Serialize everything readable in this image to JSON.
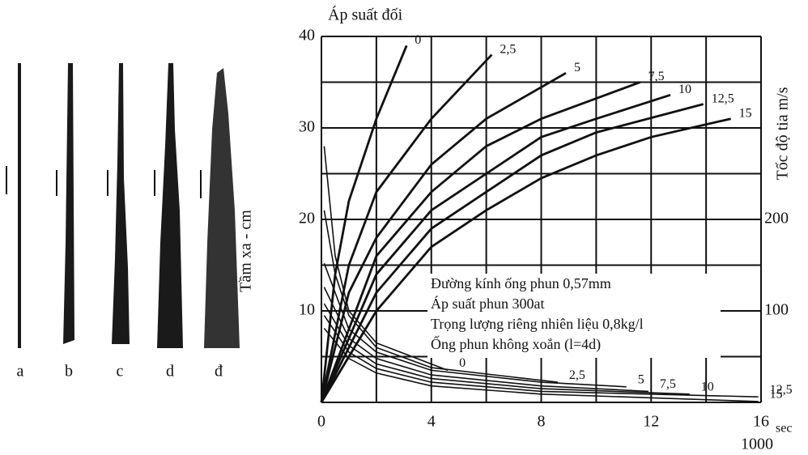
{
  "spray_images": {
    "labels": [
      "a",
      "b",
      "c",
      "d",
      "đ"
    ],
    "side_label": "Tầm xa - cm"
  },
  "chart_data": {
    "type": "line",
    "top_label": "Áp suất đối",
    "y2_label": "Tốc độ tia   m/s",
    "x_unit_top": "sec",
    "x_unit_bottom": "1000",
    "xlim": [
      0,
      16
    ],
    "xticks": [
      0,
      4,
      8,
      12,
      16
    ],
    "ylim": [
      0,
      40
    ],
    "yticks": [
      10,
      20,
      30,
      40
    ],
    "y2lim": [
      0,
      400
    ],
    "y2ticks": [
      100,
      200
    ],
    "xgrid": [
      0,
      2,
      4,
      6,
      8,
      10,
      12,
      14,
      16
    ],
    "ygrid": [
      0,
      5,
      10,
      15,
      20,
      25,
      30,
      35,
      40
    ],
    "grid": true,
    "color": "#111111",
    "annotation": [
      "Đường kính ống phun 0,57mm",
      "Áp suất phun 300at",
      "Trọng lượng riêng nhiên liệu 0,8kg/l",
      "Ống phun không xoắn (l=4d)"
    ],
    "series": [
      {
        "name": "0",
        "axis": "y",
        "x": [
          0,
          0.5,
          1,
          2,
          3.1
        ],
        "values": [
          0,
          14,
          22,
          31,
          39
        ]
      },
      {
        "name": "2,5",
        "axis": "y",
        "x": [
          0,
          1,
          2,
          4,
          6.2
        ],
        "values": [
          0,
          15,
          23,
          31,
          38
        ]
      },
      {
        "name": "5",
        "axis": "y",
        "x": [
          0,
          1,
          2,
          4,
          6,
          8.9
        ],
        "values": [
          0,
          12,
          18,
          26,
          31,
          36
        ]
      },
      {
        "name": "7,5",
        "axis": "y",
        "x": [
          0,
          2,
          4,
          6,
          8,
          11.6
        ],
        "values": [
          0,
          16,
          23,
          28,
          31,
          35
        ]
      },
      {
        "name": "10",
        "axis": "y",
        "x": [
          0,
          2,
          4,
          6,
          8,
          10,
          12.7
        ],
        "values": [
          0,
          14,
          21,
          25,
          29,
          31,
          33.6
        ]
      },
      {
        "name": "12,5",
        "axis": "y",
        "x": [
          0,
          2,
          4,
          6,
          8,
          10,
          13.9
        ],
        "values": [
          0,
          12,
          19,
          23,
          27,
          29.5,
          32.6
        ]
      },
      {
        "name": "15",
        "axis": "y",
        "x": [
          0,
          2,
          4,
          6,
          8,
          10,
          12,
          14.9
        ],
        "values": [
          0,
          10,
          17,
          21,
          24.5,
          27,
          29,
          31
        ]
      },
      {
        "name": "0",
        "axis": "y2",
        "x": [
          0.1,
          0.5,
          1,
          2,
          4.6
        ],
        "values": [
          280,
          160,
          100,
          65,
          35
        ]
      },
      {
        "name": "2,5",
        "axis": "y2",
        "x": [
          0.1,
          0.5,
          1,
          2,
          4,
          8.6
        ],
        "values": [
          210,
          140,
          95,
          60,
          38,
          22
        ]
      },
      {
        "name": "5",
        "axis": "y2",
        "x": [
          0.1,
          1,
          2,
          4,
          8,
          11.1
        ],
        "values": [
          152,
          80,
          55,
          35,
          22,
          17
        ]
      },
      {
        "name": "7,5",
        "axis": "y2",
        "x": [
          0.1,
          1,
          2,
          4,
          8,
          11.9
        ],
        "values": [
          126,
          70,
          48,
          30,
          18,
          12
        ]
      },
      {
        "name": "10",
        "axis": "y2",
        "x": [
          0.1,
          1,
          2,
          4,
          8,
          13.4
        ],
        "values": [
          108,
          62,
          42,
          26,
          15,
          9
        ]
      },
      {
        "name": "12,5",
        "axis": "y2",
        "x": [
          0.1,
          1,
          2,
          4,
          8,
          15.9
        ],
        "values": [
          95,
          55,
          37,
          22,
          12,
          6
        ]
      },
      {
        "name": "15",
        "axis": "y2",
        "x": [
          0.1,
          1,
          2,
          4,
          8,
          15.9
        ],
        "values": [
          81,
          48,
          32,
          18,
          9,
          1
        ]
      }
    ]
  }
}
